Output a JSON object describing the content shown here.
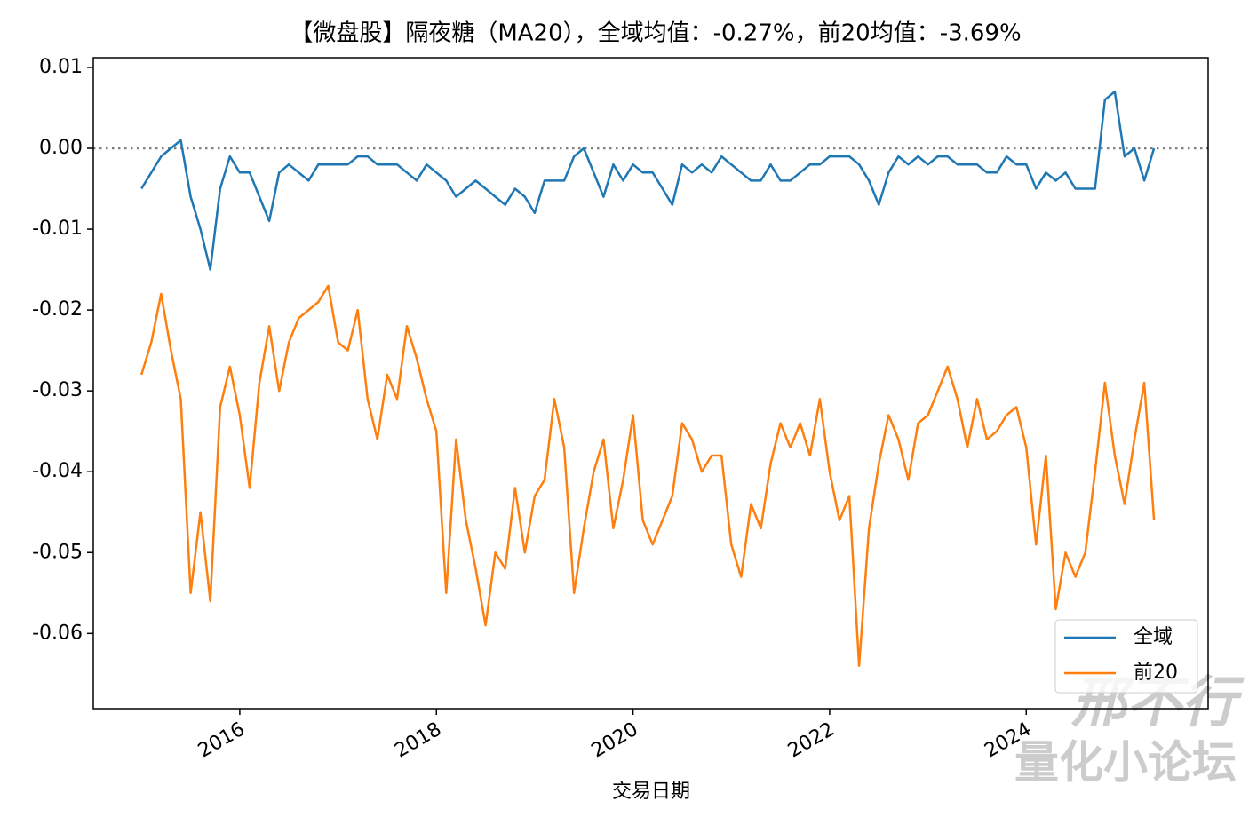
{
  "chart_data": {
    "type": "line",
    "title": "【微盘股】隔夜糖（MA20），全域均值：-0.27%，前20均值：-3.69%",
    "x_label": "交易日期",
    "x": [
      2015.0,
      2015.1,
      2015.2,
      2015.3,
      2015.4,
      2015.5,
      2015.6,
      2015.7,
      2015.8,
      2015.9,
      2016.0,
      2016.1,
      2016.2,
      2016.3,
      2016.4,
      2016.5,
      2016.6,
      2016.7,
      2016.8,
      2016.9,
      2017.0,
      2017.1,
      2017.2,
      2017.3,
      2017.4,
      2017.5,
      2017.6,
      2017.7,
      2017.8,
      2017.9,
      2018.0,
      2018.1,
      2018.2,
      2018.3,
      2018.4,
      2018.5,
      2018.6,
      2018.7,
      2018.8,
      2018.9,
      2019.0,
      2019.1,
      2019.2,
      2019.3,
      2019.4,
      2019.5,
      2019.6,
      2019.7,
      2019.8,
      2019.9,
      2020.0,
      2020.1,
      2020.2,
      2020.3,
      2020.4,
      2020.5,
      2020.6,
      2020.7,
      2020.8,
      2020.9,
      2021.0,
      2021.1,
      2021.2,
      2021.3,
      2021.4,
      2021.5,
      2021.6,
      2021.7,
      2021.8,
      2021.9,
      2022.0,
      2022.1,
      2022.2,
      2022.3,
      2022.4,
      2022.5,
      2022.6,
      2022.7,
      2022.8,
      2022.9,
      2023.0,
      2023.1,
      2023.2,
      2023.3,
      2023.4,
      2023.5,
      2023.6,
      2023.7,
      2023.8,
      2023.9,
      2024.0,
      2024.1,
      2024.2,
      2024.3,
      2024.4,
      2024.5,
      2024.6,
      2024.7,
      2024.8,
      2024.9,
      2025.0,
      2025.1,
      2025.2,
      2025.3
    ],
    "series": [
      {
        "name": "全域",
        "color": "#1f77b4",
        "values": [
          -0.005,
          -0.003,
          -0.001,
          0.0,
          0.001,
          -0.006,
          -0.01,
          -0.015,
          -0.005,
          -0.001,
          -0.003,
          -0.003,
          -0.006,
          -0.009,
          -0.003,
          -0.002,
          -0.003,
          -0.004,
          -0.002,
          -0.002,
          -0.002,
          -0.002,
          -0.001,
          -0.001,
          -0.002,
          -0.002,
          -0.002,
          -0.003,
          -0.004,
          -0.002,
          -0.003,
          -0.004,
          -0.006,
          -0.005,
          -0.004,
          -0.005,
          -0.006,
          -0.007,
          -0.005,
          -0.006,
          -0.008,
          -0.004,
          -0.004,
          -0.004,
          -0.001,
          0.0,
          -0.003,
          -0.006,
          -0.002,
          -0.004,
          -0.002,
          -0.003,
          -0.003,
          -0.005,
          -0.007,
          -0.002,
          -0.003,
          -0.002,
          -0.003,
          -0.001,
          -0.002,
          -0.003,
          -0.004,
          -0.004,
          -0.002,
          -0.004,
          -0.004,
          -0.003,
          -0.002,
          -0.002,
          -0.001,
          -0.001,
          -0.001,
          -0.002,
          -0.004,
          -0.007,
          -0.003,
          -0.001,
          -0.002,
          -0.001,
          -0.002,
          -0.001,
          -0.001,
          -0.002,
          -0.002,
          -0.002,
          -0.003,
          -0.003,
          -0.001,
          -0.002,
          -0.002,
          -0.005,
          -0.003,
          -0.004,
          -0.003,
          -0.005,
          -0.005,
          -0.005,
          0.006,
          0.007,
          -0.001,
          0.0,
          -0.004,
          0.0
        ]
      },
      {
        "name": "前20",
        "color": "#ff7f0e",
        "values": [
          -0.028,
          -0.024,
          -0.018,
          -0.025,
          -0.031,
          -0.055,
          -0.045,
          -0.056,
          -0.032,
          -0.027,
          -0.033,
          -0.042,
          -0.029,
          -0.022,
          -0.03,
          -0.024,
          -0.021,
          -0.02,
          -0.019,
          -0.017,
          -0.024,
          -0.025,
          -0.02,
          -0.031,
          -0.036,
          -0.028,
          -0.031,
          -0.022,
          -0.026,
          -0.031,
          -0.035,
          -0.055,
          -0.036,
          -0.046,
          -0.052,
          -0.059,
          -0.05,
          -0.052,
          -0.042,
          -0.05,
          -0.043,
          -0.041,
          -0.031,
          -0.037,
          -0.055,
          -0.047,
          -0.04,
          -0.036,
          -0.047,
          -0.041,
          -0.033,
          -0.046,
          -0.049,
          -0.046,
          -0.043,
          -0.034,
          -0.036,
          -0.04,
          -0.038,
          -0.038,
          -0.049,
          -0.053,
          -0.044,
          -0.047,
          -0.039,
          -0.034,
          -0.037,
          -0.034,
          -0.038,
          -0.031,
          -0.04,
          -0.046,
          -0.043,
          -0.064,
          -0.047,
          -0.039,
          -0.033,
          -0.036,
          -0.041,
          -0.034,
          -0.033,
          -0.03,
          -0.027,
          -0.031,
          -0.037,
          -0.031,
          -0.036,
          -0.035,
          -0.033,
          -0.032,
          -0.037,
          -0.049,
          -0.038,
          -0.057,
          -0.05,
          -0.053,
          -0.05,
          -0.04,
          -0.029,
          -0.038,
          -0.044,
          -0.036,
          -0.029,
          -0.046
        ]
      }
    ],
    "xlim": [
      2014.51,
      2025.85
    ],
    "xticks": [
      2016,
      2018,
      2020,
      2022,
      2024
    ],
    "ylim": [
      -0.0693,
      0.0112
    ],
    "yticks": [
      0.01,
      {
        "value": 0,
        "label": "0.00"
      },
      -0.01,
      -0.02,
      -0.03,
      -0.04,
      -0.05,
      -0.06
    ],
    "hline": 0,
    "legend": "lower right",
    "watermark": [
      "邢不行",
      "量化小论坛"
    ]
  }
}
